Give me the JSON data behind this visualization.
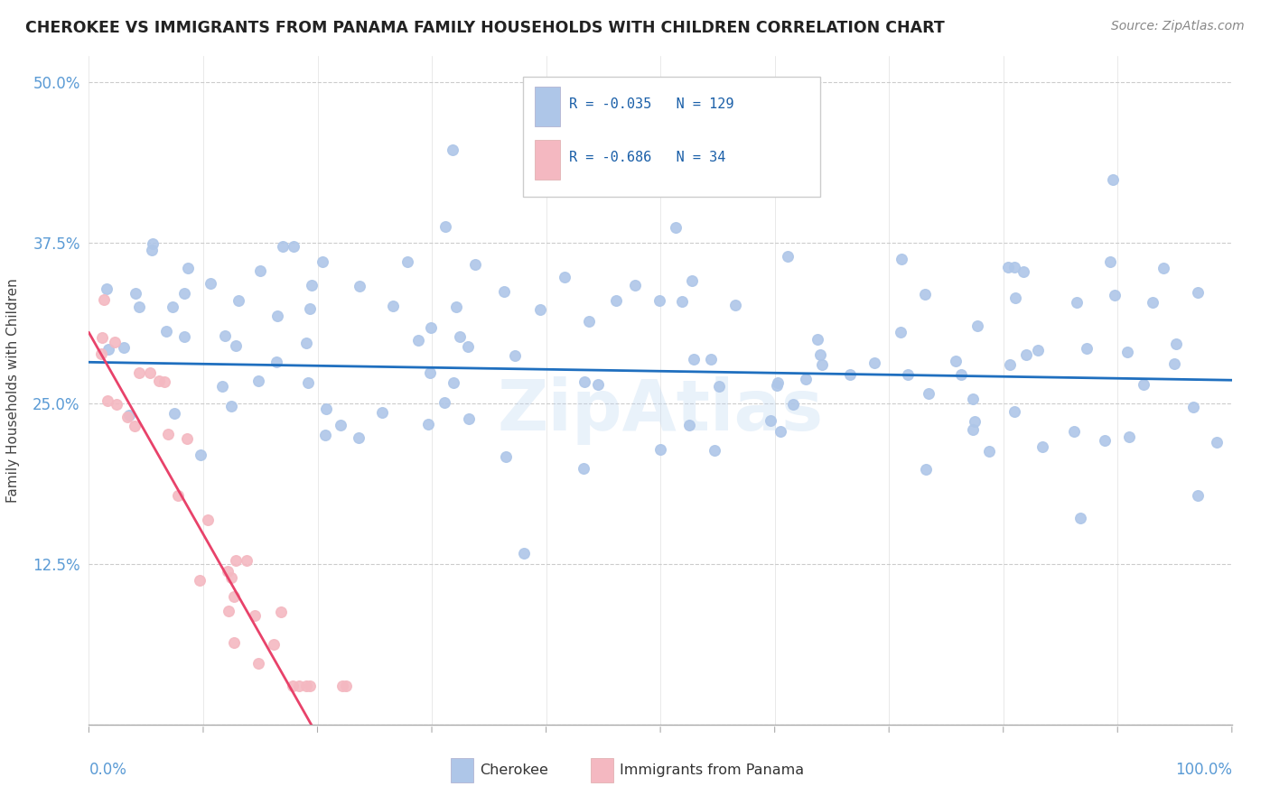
{
  "title": "CHEROKEE VS IMMIGRANTS FROM PANAMA FAMILY HOUSEHOLDS WITH CHILDREN CORRELATION CHART",
  "source": "Source: ZipAtlas.com",
  "ylabel": "Family Households with Children",
  "cherokee_R": "-0.035",
  "cherokee_N": "129",
  "panama_R": "-0.686",
  "panama_N": "34",
  "cherokee_color": "#aec6e8",
  "cherokee_line_color": "#1f6fbf",
  "panama_color": "#f4b8c1",
  "panama_line_color": "#e8426a",
  "legend_color": "#1a5fa8",
  "watermark": "ZipAtlas",
  "xlim": [
    0.0,
    1.0
  ],
  "ylim": [
    0.0,
    0.52
  ],
  "yticks": [
    0.0,
    0.125,
    0.25,
    0.375,
    0.5
  ],
  "ytick_labels": [
    "",
    "12.5%",
    "25.0%",
    "37.5%",
    "50.0%"
  ]
}
